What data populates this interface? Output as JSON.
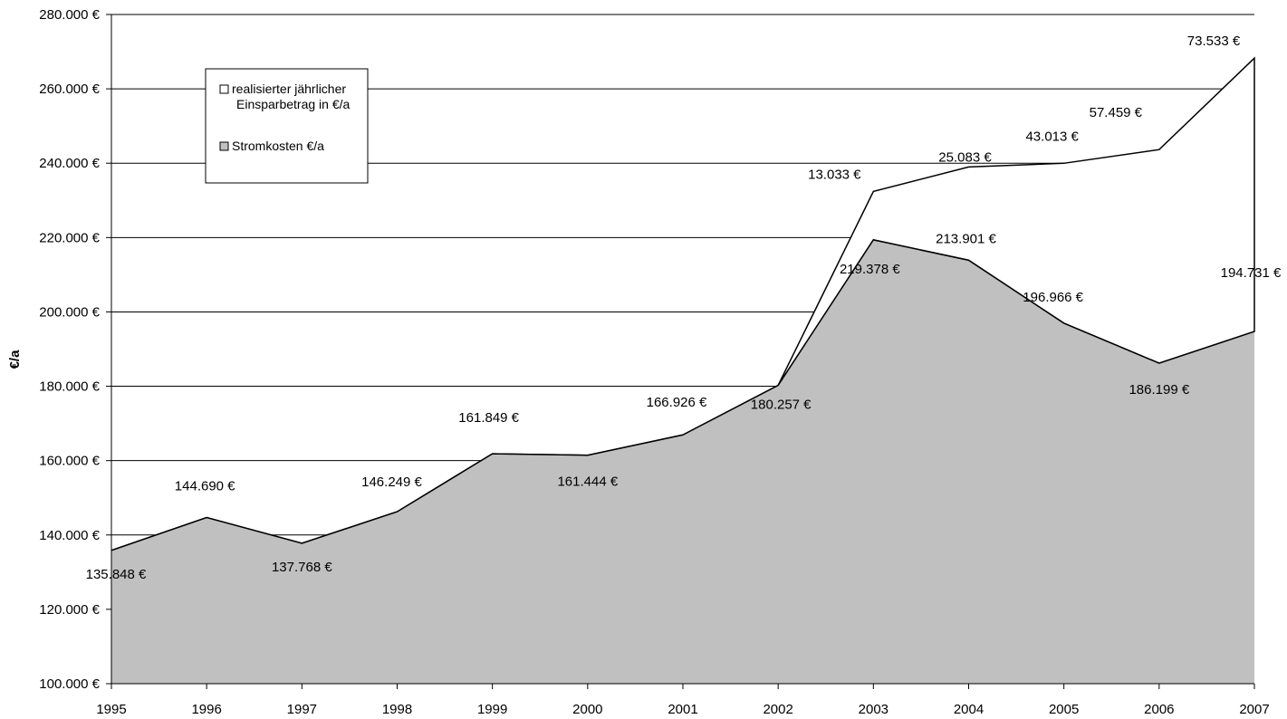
{
  "chart_data": {
    "type": "area",
    "title": "",
    "xlabel": "",
    "ylabel": "€/a",
    "ylim": [
      100000,
      280000
    ],
    "y_tick_step": 20000,
    "y_tick_format": "{v} €",
    "grid": "horizontal",
    "legend_position": "top-left",
    "x": [
      "1995",
      "1996",
      "1997",
      "1998",
      "1999",
      "2000",
      "2001",
      "2002",
      "2003",
      "2004",
      "2005",
      "2006",
      "2007"
    ],
    "series": [
      {
        "name": "Stromkosten €/a",
        "color": "#c0c0c0",
        "values": [
          135848,
          144690,
          137768,
          146249,
          161849,
          161444,
          166926,
          180257,
          219378,
          213901,
          196966,
          186199,
          194731
        ],
        "labels": [
          "135.848 €",
          "144.690 €",
          "137.768 €",
          "146.249 €",
          "161.849 €",
          "161.444 €",
          "166.926 €",
          "180.257 €",
          "219.378 €",
          "213.901 €",
          "196.966 €",
          "186.199 €",
          "194.731 €"
        ]
      },
      {
        "name": "realisierter jährlicher Einsparbetrag in €/a",
        "name_lines": [
          "realisierter jährlicher",
          "Einsparbetrag in €/a"
        ],
        "color": "#ffffff",
        "values": [
          0,
          0,
          0,
          0,
          0,
          0,
          0,
          0,
          13033,
          25083,
          43013,
          57459,
          73533
        ],
        "labels": [
          "",
          "",
          "",
          "",
          "",
          "",
          "",
          "",
          "13.033 €",
          "25.083 €",
          "43.013 €",
          "57.459 €",
          "73.533 €"
        ]
      }
    ]
  }
}
